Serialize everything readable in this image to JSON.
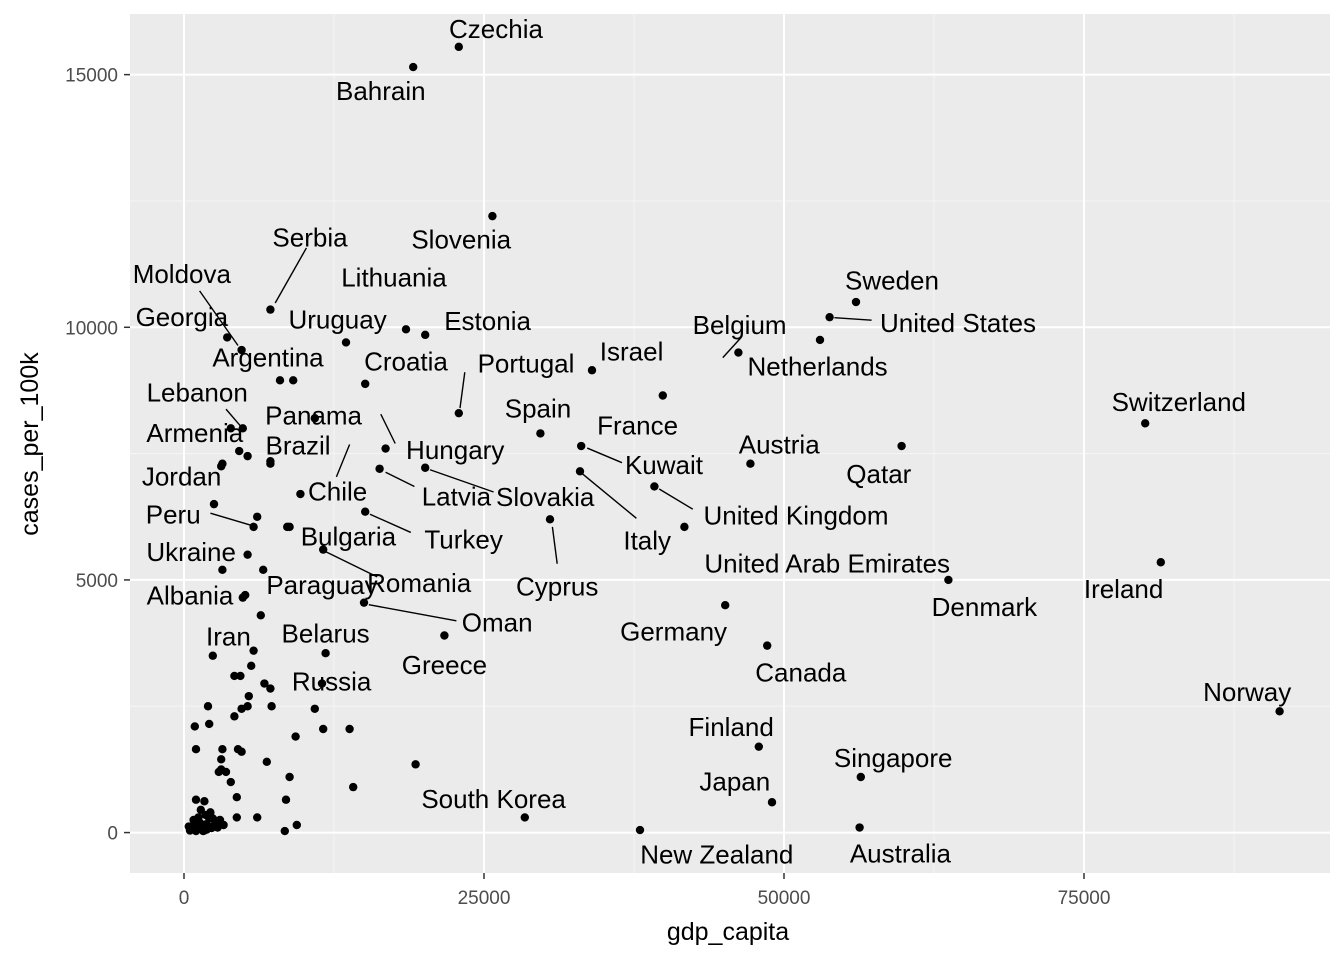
{
  "chart_data": {
    "type": "scatter",
    "xlabel": "gdp_capita",
    "ylabel": "cases_per_100k",
    "xlim": [
      -4500,
      95500
    ],
    "ylim": [
      -800,
      16200
    ],
    "x_ticks": [
      0,
      25000,
      50000,
      75000
    ],
    "x_tick_labels": [
      "0",
      "25000",
      "50000",
      "75000"
    ],
    "y_ticks": [
      0,
      5000,
      10000,
      15000
    ],
    "y_tick_labels": [
      "0",
      "5000",
      "10000",
      "15000"
    ],
    "grid": true,
    "colors": {
      "panel": "#ebebeb",
      "grid_major": "#ffffff",
      "grid_minor": "#f5f5f5",
      "point": "#000000",
      "segment": "#000000"
    },
    "labeled_points": [
      {
        "name": "Czechia",
        "x": 22900,
        "y": 15550,
        "lx": 26000,
        "ly": 15900
      },
      {
        "name": "Bahrain",
        "x": 19100,
        "y": 15150,
        "lx": 16400,
        "ly": 14680
      },
      {
        "name": "Slovenia",
        "x": 25700,
        "y": 12200,
        "lx": 23100,
        "ly": 11740
      },
      {
        "name": "Serbia",
        "x": 7200,
        "y": 10350,
        "lx": 10500,
        "ly": 11780,
        "seg": [
          [
            7600,
            10480
          ],
          [
            10200,
            11570
          ]
        ]
      },
      {
        "name": "Moldova",
        "x": 4800,
        "y": 9550,
        "lx": -180,
        "ly": 11050,
        "seg": [
          [
            1300,
            10720
          ],
          [
            4500,
            9640
          ]
        ]
      },
      {
        "name": "Lithuania",
        "x": 18500,
        "y": 9960,
        "lx": 17500,
        "ly": 10990
      },
      {
        "name": "Georgia",
        "x": 3600,
        "y": 9800,
        "lx": -180,
        "ly": 10200
      },
      {
        "name": "Uruguay",
        "x": 13500,
        "y": 9700,
        "lx": 12800,
        "ly": 10150
      },
      {
        "name": "Estonia",
        "x": 20100,
        "y": 9850,
        "lx": 25300,
        "ly": 10120
      },
      {
        "name": "Sweden",
        "x": 56000,
        "y": 10500,
        "lx": 59000,
        "ly": 10930
      },
      {
        "name": "United States",
        "x": 53800,
        "y": 10200,
        "lx": 64500,
        "ly": 10080,
        "seg": [
          [
            54200,
            10190
          ],
          [
            57300,
            10140
          ]
        ]
      },
      {
        "name": "Belgium",
        "x": 46200,
        "y": 9500,
        "lx": 46300,
        "ly": 10050,
        "seg": [
          [
            44900,
            9400
          ],
          [
            46400,
            9790
          ]
        ]
      },
      {
        "name": "Netherlands",
        "x": 53000,
        "y": 9750,
        "lx": 52800,
        "ly": 9220
      },
      {
        "name": "Argentina",
        "x": 9100,
        "y": 8950,
        "lx": 7000,
        "ly": 9400
      },
      {
        "name": "Croatia",
        "x": 15100,
        "y": 8880,
        "lx": 18500,
        "ly": 9320
      },
      {
        "name": "Portugal",
        "x": 22900,
        "y": 8300,
        "lx": 28500,
        "ly": 9280,
        "seg": [
          [
            23000,
            8400
          ],
          [
            23400,
            9110
          ]
        ]
      },
      {
        "name": "Israel",
        "x": 34000,
        "y": 9150,
        "lx": 37300,
        "ly": 9520
      },
      {
        "name": "Lebanon",
        "x": 4900,
        "y": 8000,
        "lx": 1100,
        "ly": 8710,
        "seg": [
          [
            3500,
            8380
          ],
          [
            4800,
            8020
          ]
        ]
      },
      {
        "name": "Panama",
        "x": 10900,
        "y": 8200,
        "lx": 10800,
        "ly": 8250
      },
      {
        "name": "Spain",
        "x": 29700,
        "y": 7900,
        "lx": 29500,
        "ly": 8390
      },
      {
        "name": "France",
        "x": 33100,
        "y": 7650,
        "lx": 37800,
        "ly": 8060
      },
      {
        "name": "Armenia",
        "x": 4600,
        "y": 7550,
        "lx": 900,
        "ly": 7910
      },
      {
        "name": "Brazil",
        "x": 7200,
        "y": 7350,
        "lx": 9500,
        "ly": 7660
      },
      {
        "name": "Hungary",
        "x": 16800,
        "y": 7600,
        "lx": 22600,
        "ly": 7570,
        "seg": [
          [
            16400,
            8280
          ],
          [
            17600,
            7700
          ]
        ]
      },
      {
        "name": "Kuwait",
        "x": 39900,
        "y": 8650,
        "lx": 40000,
        "ly": 7270,
        "seg": [
          [
            33600,
            7610
          ],
          [
            36500,
            7320
          ]
        ]
      },
      {
        "name": "Austria",
        "x": 47200,
        "y": 7300,
        "lx": 49600,
        "ly": 7680
      },
      {
        "name": "Switzerland",
        "x": 80100,
        "y": 8100,
        "lx": 82900,
        "ly": 8520
      },
      {
        "name": "Qatar",
        "x": 59800,
        "y": 7650,
        "lx": 57900,
        "ly": 7100
      },
      {
        "name": "Jordan",
        "x": 3200,
        "y": 7300,
        "lx": -200,
        "ly": 7050
      },
      {
        "name": "Chile",
        "x": 9700,
        "y": 6700,
        "lx": 12800,
        "ly": 6750,
        "seg": [
          [
            13800,
            7680
          ],
          [
            12700,
            7040
          ]
        ]
      },
      {
        "name": "Latvia",
        "x": 16300,
        "y": 7200,
        "lx": 22700,
        "ly": 6650,
        "seg": [
          [
            16800,
            7130
          ],
          [
            19200,
            6850
          ]
        ]
      },
      {
        "name": "Slovakia",
        "x": 20100,
        "y": 7220,
        "lx": 30100,
        "ly": 6640,
        "seg": [
          [
            20500,
            7180
          ],
          [
            25800,
            6740
          ]
        ]
      },
      {
        "name": "United Kingdom",
        "x": 39200,
        "y": 6850,
        "lx": 51000,
        "ly": 6280,
        "seg": [
          [
            39600,
            6800
          ],
          [
            42400,
            6400
          ]
        ]
      },
      {
        "name": "Peru",
        "x": 2500,
        "y": 6500,
        "lx": -900,
        "ly": 6290,
        "seg": [
          [
            2200,
            6320
          ],
          [
            5600,
            6080
          ]
        ]
      },
      {
        "name": "Bulgaria",
        "x": 8800,
        "y": 6050,
        "lx": 13700,
        "ly": 5860
      },
      {
        "name": "Turkey",
        "x": 15100,
        "y": 6350,
        "lx": 23300,
        "ly": 5800,
        "seg": [
          [
            15500,
            6300
          ],
          [
            18900,
            5940
          ]
        ]
      },
      {
        "name": "Cyprus",
        "x": 30500,
        "y": 6200,
        "lx": 31100,
        "ly": 4870,
        "seg": [
          [
            30700,
            6050
          ],
          [
            31100,
            5320
          ]
        ]
      },
      {
        "name": "Italy",
        "x": 33000,
        "y": 7150,
        "lx": 38600,
        "ly": 5780,
        "seg": [
          [
            33200,
            7100
          ],
          [
            37700,
            6220
          ]
        ]
      },
      {
        "name": "United Arab Emirates",
        "x": 41700,
        "y": 6050,
        "lx": 53600,
        "ly": 5330
      },
      {
        "name": "Ukraine",
        "x": 5300,
        "y": 5500,
        "lx": 600,
        "ly": 5550
      },
      {
        "name": "Romania",
        "x": 11600,
        "y": 5600,
        "lx": 19600,
        "ly": 4940,
        "seg": [
          [
            11800,
            5560
          ],
          [
            16100,
            5060
          ]
        ]
      },
      {
        "name": "Paraguay",
        "x": 6600,
        "y": 5200,
        "lx": 11500,
        "ly": 4900
      },
      {
        "name": "Ireland",
        "x": 81400,
        "y": 5350,
        "lx": 78300,
        "ly": 4820
      },
      {
        "name": "Denmark",
        "x": 63700,
        "y": 5000,
        "lx": 66700,
        "ly": 4460
      },
      {
        "name": "Albania",
        "x": 5100,
        "y": 4700,
        "lx": 500,
        "ly": 4690
      },
      {
        "name": "Oman",
        "x": 15000,
        "y": 4550,
        "lx": 26100,
        "ly": 4160,
        "seg": [
          [
            15400,
            4510
          ],
          [
            22700,
            4190
          ]
        ]
      },
      {
        "name": "Germany",
        "x": 45100,
        "y": 4500,
        "lx": 40800,
        "ly": 3980
      },
      {
        "name": "Iran",
        "x": 2400,
        "y": 3500,
        "lx": 3700,
        "ly": 3880
      },
      {
        "name": "Belarus",
        "x": 11800,
        "y": 3550,
        "lx": 11800,
        "ly": 3940
      },
      {
        "name": "Greece",
        "x": 21700,
        "y": 3900,
        "lx": 21700,
        "ly": 3320
      },
      {
        "name": "Canada",
        "x": 48600,
        "y": 3700,
        "lx": 51400,
        "ly": 3170
      },
      {
        "name": "Russia",
        "x": 11500,
        "y": 2950,
        "lx": 12300,
        "ly": 2990
      },
      {
        "name": "Norway",
        "x": 91300,
        "y": 2400,
        "lx": 88600,
        "ly": 2780
      },
      {
        "name": "Finland",
        "x": 47900,
        "y": 1700,
        "lx": 45600,
        "ly": 2090
      },
      {
        "name": "Singapore",
        "x": 56400,
        "y": 1100,
        "lx": 59100,
        "ly": 1480
      },
      {
        "name": "Japan",
        "x": 49000,
        "y": 600,
        "lx": 45900,
        "ly": 1010
      },
      {
        "name": "South Korea",
        "x": 28400,
        "y": 300,
        "lx": 25800,
        "ly": 660
      },
      {
        "name": "New Zealand",
        "x": 38000,
        "y": 50,
        "lx": 44400,
        "ly": -430
      },
      {
        "name": "Australia",
        "x": 56300,
        "y": 100,
        "lx": 59700,
        "ly": -410
      }
    ],
    "unlabeled_points": [
      [
        8000,
        8950
      ],
      [
        3900,
        8000
      ],
      [
        5300,
        7450
      ],
      [
        3100,
        7250
      ],
      [
        7200,
        7300
      ],
      [
        6100,
        6250
      ],
      [
        5800,
        6050
      ],
      [
        3200,
        5200
      ],
      [
        4900,
        4650
      ],
      [
        6400,
        4300
      ],
      [
        8600,
        6050
      ],
      [
        4700,
        3100
      ],
      [
        5800,
        3600
      ],
      [
        5600,
        3300
      ],
      [
        4200,
        3100
      ],
      [
        6700,
        2950
      ],
      [
        7200,
        2850
      ],
      [
        5400,
        2700
      ],
      [
        4800,
        2450
      ],
      [
        5300,
        2500
      ],
      [
        7300,
        2500
      ],
      [
        10900,
        2450
      ],
      [
        4200,
        2300
      ],
      [
        2000,
        2500
      ],
      [
        2100,
        2150
      ],
      [
        900,
        2100
      ],
      [
        1000,
        1650
      ],
      [
        9300,
        1900
      ],
      [
        11600,
        2050
      ],
      [
        13800,
        2050
      ],
      [
        3200,
        1650
      ],
      [
        4500,
        1650
      ],
      [
        3100,
        1450
      ],
      [
        4800,
        1600
      ],
      [
        2900,
        1200
      ],
      [
        3100,
        1250
      ],
      [
        3500,
        1200
      ],
      [
        6900,
        1400
      ],
      [
        19300,
        1350
      ],
      [
        3900,
        1000
      ],
      [
        8800,
        1100
      ],
      [
        14100,
        900
      ],
      [
        4400,
        700
      ],
      [
        8500,
        650
      ],
      [
        6100,
        300
      ],
      [
        4400,
        300
      ],
      [
        1000,
        650
      ],
      [
        1700,
        620
      ],
      [
        1400,
        450
      ],
      [
        2200,
        400
      ],
      [
        1800,
        350
      ],
      [
        2400,
        280
      ],
      [
        3000,
        250
      ],
      [
        1200,
        300
      ],
      [
        900,
        200
      ],
      [
        1500,
        150
      ],
      [
        2600,
        180
      ],
      [
        700,
        120
      ],
      [
        1100,
        80
      ],
      [
        1900,
        60
      ],
      [
        500,
        40
      ],
      [
        2300,
        90
      ],
      [
        1600,
        30
      ],
      [
        800,
        250
      ],
      [
        1300,
        200
      ],
      [
        2000,
        130
      ],
      [
        2800,
        100
      ],
      [
        3300,
        150
      ],
      [
        9400,
        150
      ],
      [
        8400,
        30
      ],
      [
        400,
        120
      ],
      [
        1800,
        160
      ],
      [
        1000,
        30
      ],
      [
        2700,
        230
      ],
      [
        1400,
        100
      ],
      [
        600,
        60
      ],
      [
        2100,
        280
      ],
      [
        1700,
        40
      ]
    ]
  }
}
